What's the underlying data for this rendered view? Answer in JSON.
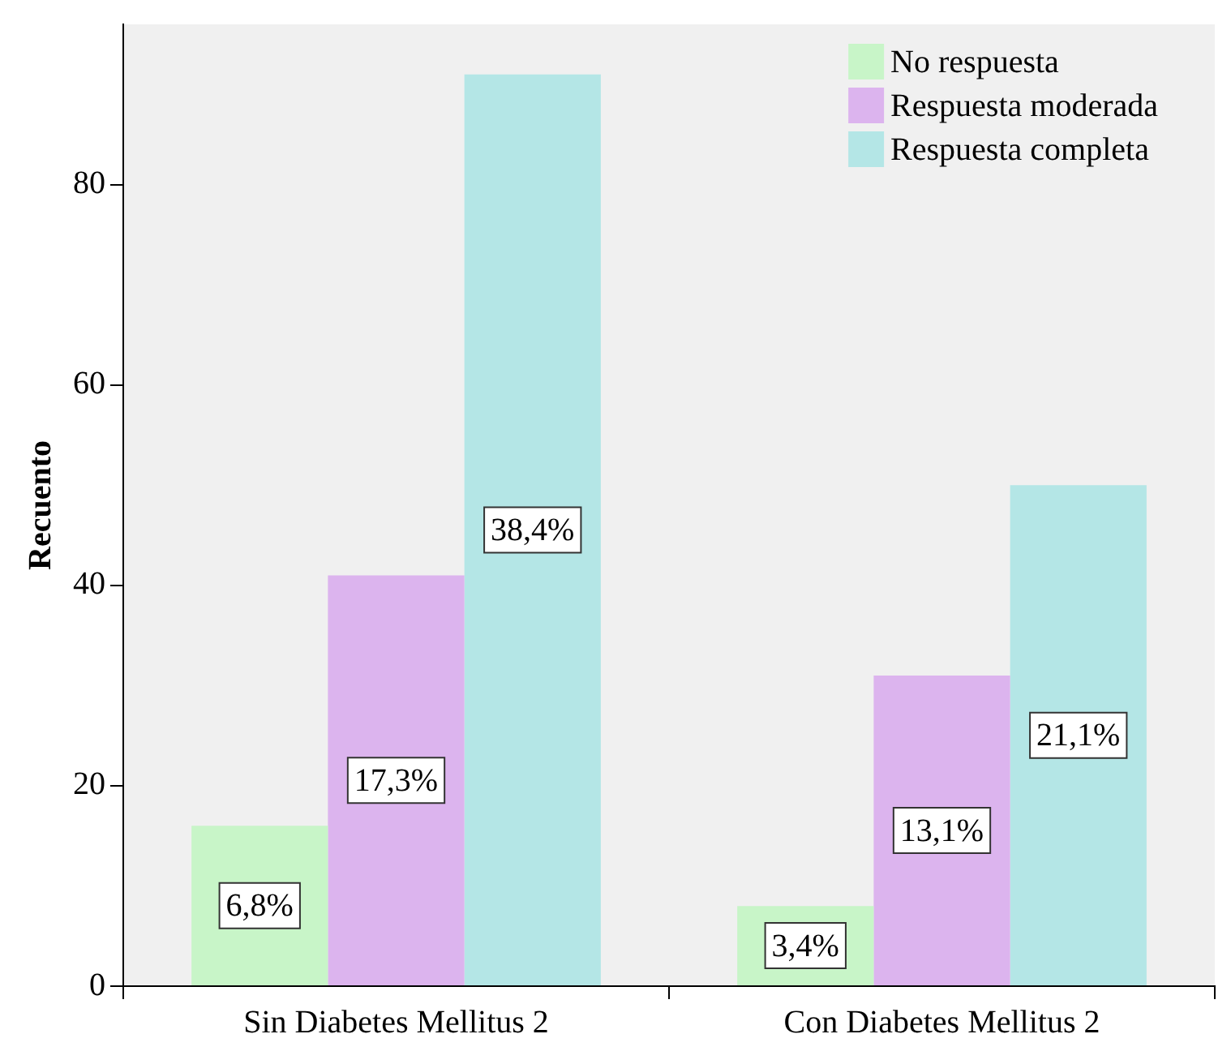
{
  "chart_data": {
    "type": "bar",
    "ylabel": "Recuento",
    "categories": [
      "Sin Diabetes Mellitus 2",
      "Con Diabetes Mellitus 2"
    ],
    "series": [
      {
        "name": "No respuesta",
        "color": "#c8f5c8",
        "values": [
          16,
          8
        ]
      },
      {
        "name": "Respuesta moderada",
        "color": "#dcb4ee",
        "values": [
          41,
          31
        ]
      },
      {
        "name": "Respuesta completa",
        "color": "#b4e6e6",
        "values": [
          91,
          50
        ]
      }
    ],
    "annotations": [
      "6,8%",
      "17,3%",
      "38,4%",
      "3,4%",
      "13,1%",
      "21,1%"
    ],
    "ylim": [
      0,
      96
    ],
    "yticks": [
      0,
      20,
      40,
      60,
      80
    ],
    "grid": false,
    "legend": "top right"
  }
}
